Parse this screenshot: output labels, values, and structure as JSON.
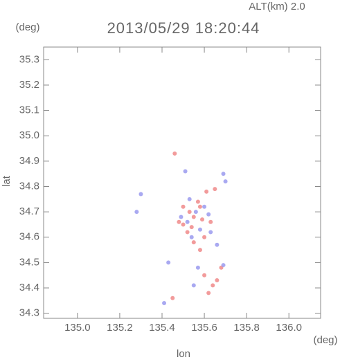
{
  "chart_data": {
    "type": "scatter",
    "title": "2013/05/29 18:20:44",
    "subtitle": "ALT(km) 2.0",
    "y_unit": "(deg)",
    "x_unit": "(deg)",
    "x_label": "lon",
    "y_label": "lat",
    "xlim": [
      134.84,
      136.15
    ],
    "ylim": [
      34.28,
      35.35
    ],
    "xticks": [
      {
        "value": 135,
        "label": "135.0"
      },
      135.2,
      135.4,
      135.6,
      135.8,
      {
        "value": 136,
        "label": "136.0"
      }
    ],
    "yticks": [
      34.3,
      34.4,
      34.5,
      34.6,
      34.7,
      34.8,
      34.9,
      {
        "value": 35,
        "label": "35.0"
      },
      35.1,
      35.2,
      35.3
    ],
    "series": [
      {
        "color": "#f08a8a",
        "x": [
          135.55,
          135.52,
          135.6,
          135.58,
          135.63,
          135.5,
          135.55,
          135.66,
          135.64,
          135.62,
          135.58,
          135.53,
          135.61,
          135.65,
          135.57,
          135.48,
          135.68,
          135.6,
          135.45,
          135.5,
          135.54,
          135.59,
          135.46
        ],
        "y": [
          34.68,
          34.62,
          34.6,
          34.72,
          34.66,
          34.65,
          34.58,
          34.43,
          34.41,
          34.38,
          34.55,
          34.7,
          34.78,
          34.79,
          34.74,
          34.66,
          34.48,
          34.45,
          34.36,
          34.72,
          34.64,
          34.67,
          34.93
        ]
      },
      {
        "color": "#9a9aee",
        "x": [
          135.52,
          135.58,
          135.62,
          135.56,
          135.49,
          135.63,
          135.54,
          135.51,
          135.69,
          135.57,
          135.55,
          135.69,
          135.3,
          135.43,
          135.66,
          135.6,
          135.53,
          135.41,
          135.7,
          135.28
        ],
        "y": [
          34.66,
          34.63,
          34.69,
          34.7,
          34.68,
          34.62,
          34.6,
          34.86,
          34.85,
          34.48,
          34.41,
          34.49,
          34.77,
          34.5,
          34.57,
          34.72,
          34.75,
          34.34,
          34.82,
          34.7
        ]
      }
    ]
  }
}
